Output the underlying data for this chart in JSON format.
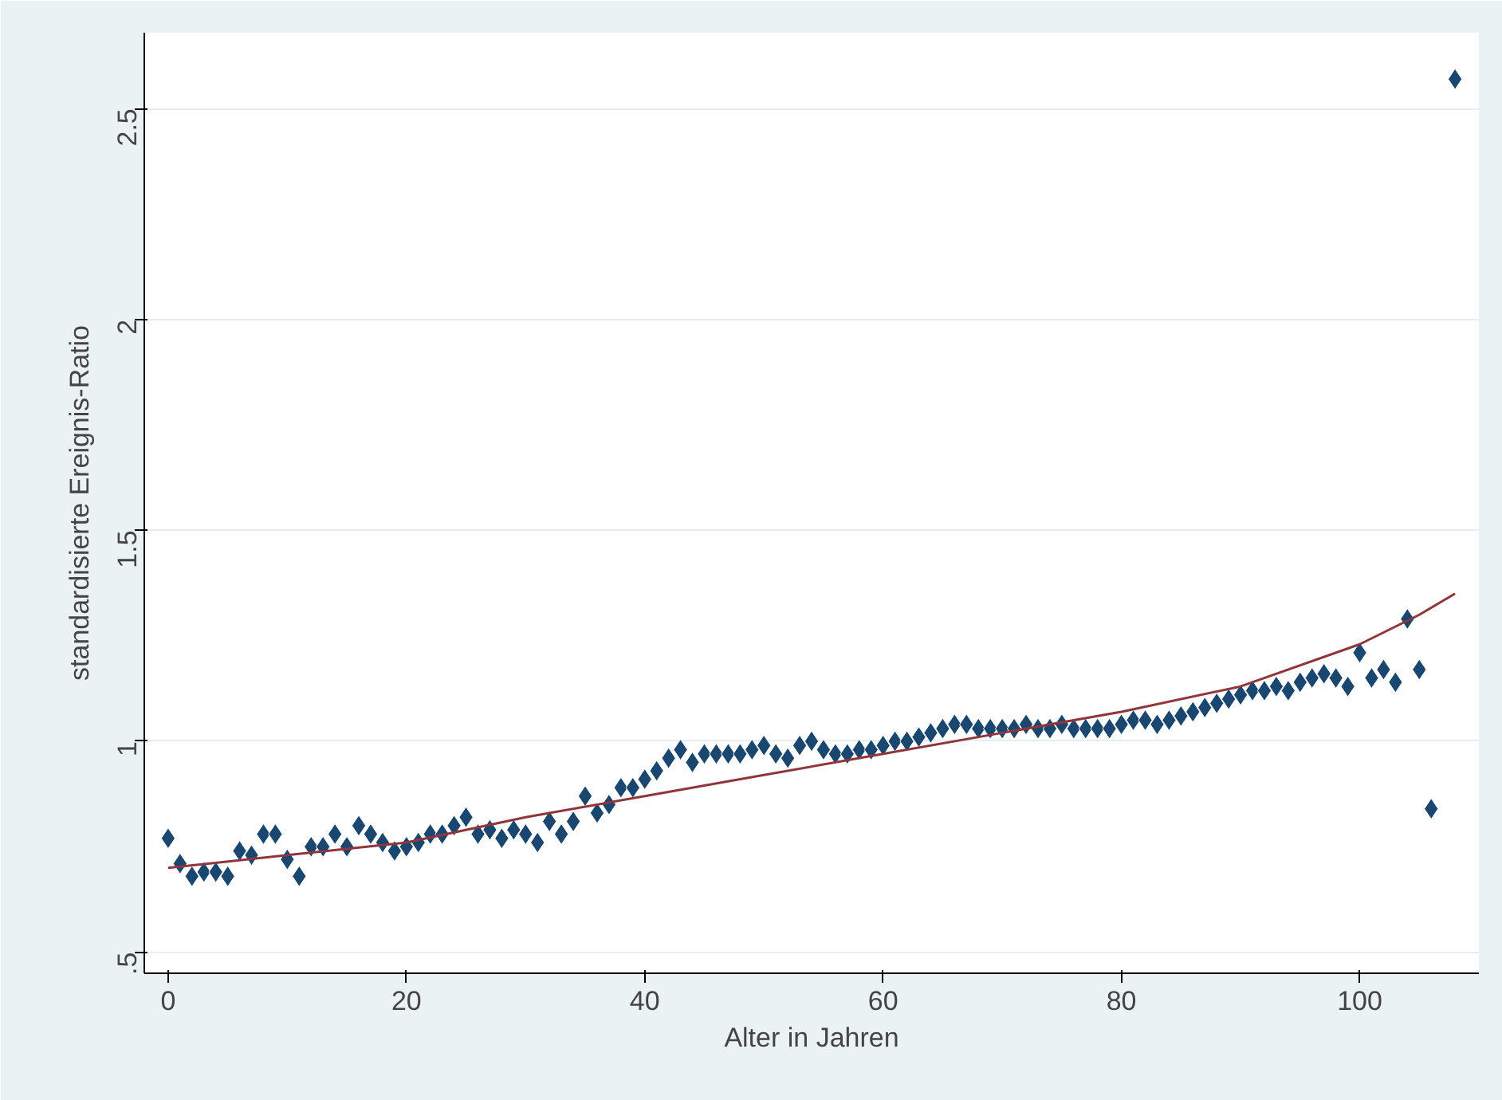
{
  "chart_data": {
    "type": "scatter",
    "xlabel": "Alter in Jahren",
    "ylabel": "standardisierte Ereignis-Ratio",
    "xlim": [
      -2,
      110
    ],
    "ylim": [
      0.45,
      2.68
    ],
    "xticks": [
      0,
      20,
      40,
      60,
      80,
      100
    ],
    "yticks": [
      {
        "value": 0.5,
        "label": ".5"
      },
      1,
      1.5,
      2,
      2.5
    ],
    "grid": "y",
    "series": [
      {
        "color": "#1a476f",
        "marker": "diamond",
        "x": [
          0,
          1,
          2,
          3,
          4,
          5,
          6,
          7,
          8,
          9,
          10,
          11,
          12,
          13,
          14,
          15,
          16,
          17,
          18,
          19,
          20,
          21,
          22,
          23,
          24,
          25,
          26,
          27,
          28,
          29,
          30,
          31,
          32,
          33,
          34,
          35,
          36,
          37,
          38,
          39,
          40,
          41,
          42,
          43,
          44,
          45,
          46,
          47,
          48,
          49,
          50,
          51,
          52,
          53,
          54,
          55,
          56,
          57,
          58,
          59,
          60,
          61,
          62,
          63,
          64,
          65,
          66,
          67,
          68,
          69,
          70,
          71,
          72,
          73,
          74,
          75,
          76,
          77,
          78,
          79,
          80,
          81,
          82,
          83,
          84,
          85,
          86,
          87,
          88,
          89,
          90,
          91,
          92,
          93,
          94,
          95,
          96,
          97,
          98,
          99,
          100,
          101,
          102,
          103,
          104,
          105,
          106,
          108
        ],
        "values": [
          0.77,
          0.71,
          0.68,
          0.69,
          0.69,
          0.68,
          0.74,
          0.73,
          0.78,
          0.78,
          0.72,
          0.68,
          0.75,
          0.75,
          0.78,
          0.75,
          0.8,
          0.78,
          0.76,
          0.74,
          0.75,
          0.76,
          0.78,
          0.78,
          0.8,
          0.82,
          0.78,
          0.79,
          0.77,
          0.79,
          0.78,
          0.76,
          0.81,
          0.78,
          0.81,
          0.87,
          0.83,
          0.85,
          0.89,
          0.89,
          0.91,
          0.93,
          0.96,
          0.98,
          0.95,
          0.97,
          0.97,
          0.97,
          0.97,
          0.98,
          0.99,
          0.97,
          0.96,
          0.99,
          1.0,
          0.98,
          0.97,
          0.97,
          0.98,
          0.98,
          0.99,
          1.0,
          1.0,
          1.01,
          1.02,
          1.03,
          1.04,
          1.04,
          1.03,
          1.03,
          1.03,
          1.03,
          1.04,
          1.03,
          1.03,
          1.04,
          1.03,
          1.03,
          1.03,
          1.03,
          1.04,
          1.05,
          1.05,
          1.04,
          1.05,
          1.06,
          1.07,
          1.08,
          1.09,
          1.1,
          1.11,
          1.12,
          1.12,
          1.13,
          1.12,
          1.14,
          1.15,
          1.16,
          1.15,
          1.13,
          1.21,
          1.15,
          1.17,
          1.14,
          1.29,
          1.17,
          0.84,
          2.57
        ]
      },
      {
        "type": "line",
        "color": "#90353b",
        "marker": "none",
        "line_style": "solid",
        "x": [
          0,
          10,
          20,
          30,
          40,
          50,
          60,
          70,
          80,
          90,
          100,
          105,
          108
        ],
        "values": [
          0.7,
          0.73,
          0.76,
          0.82,
          0.87,
          0.92,
          0.97,
          1.02,
          1.07,
          1.13,
          1.23,
          1.3,
          1.35
        ]
      }
    ]
  }
}
